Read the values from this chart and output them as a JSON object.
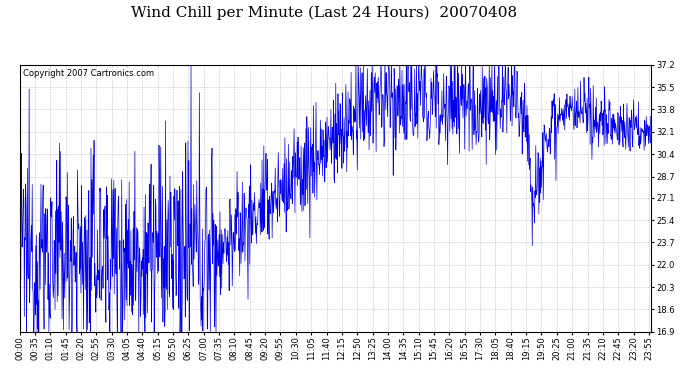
{
  "title": "Wind Chill per Minute (Last 24 Hours)  20070408",
  "copyright_text": "Copyright 2007 Cartronics.com",
  "line_color": "#0000ee",
  "background_color": "#ffffff",
  "grid_color": "#bbbbbb",
  "ylim": [
    16.9,
    37.2
  ],
  "yticks": [
    16.9,
    18.6,
    20.3,
    22.0,
    23.7,
    25.4,
    27.1,
    28.7,
    30.4,
    32.1,
    33.8,
    35.5,
    37.2
  ],
  "xlabel": "",
  "ylabel": "",
  "title_fontsize": 11,
  "copyright_fontsize": 6,
  "tick_fontsize": 6,
  "n_minutes": 1440,
  "total_hours": 24,
  "xtick_step_minutes": 35
}
